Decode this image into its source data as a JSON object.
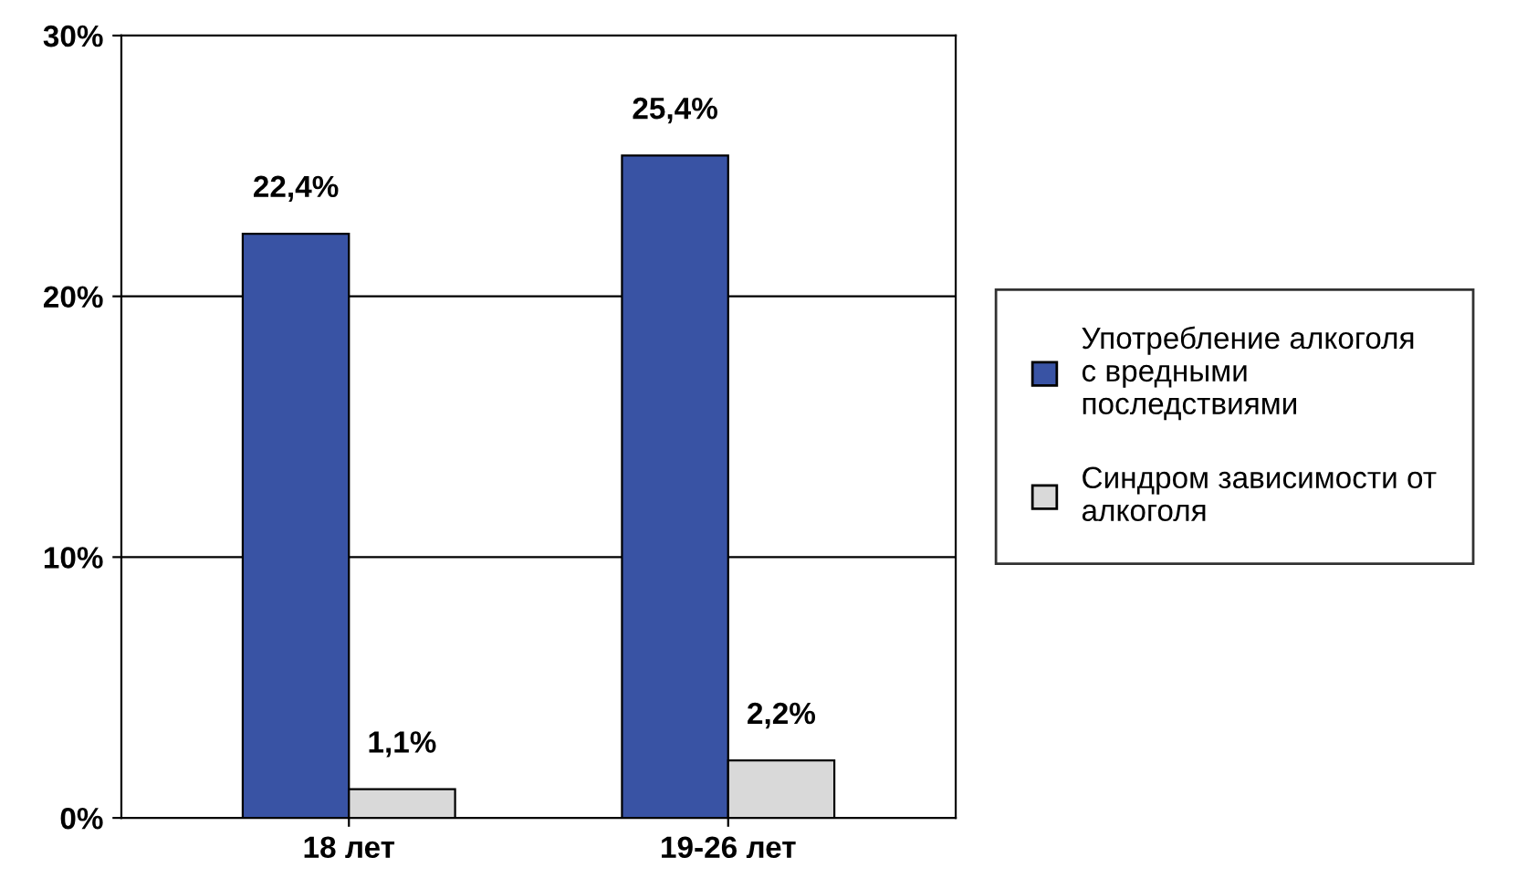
{
  "chart_data": {
    "type": "bar",
    "categories": [
      "18 лет",
      "19-26 лет"
    ],
    "series": [
      {
        "name": "Употребление алкоголя с вредными последствиями",
        "color": "#3953a4",
        "values": [
          22.4,
          25.4
        ],
        "value_labels": [
          "22,4%",
          "25,4%"
        ]
      },
      {
        "name": "Синдром зависимости от алкоголя",
        "color": "#d9d9d9",
        "values": [
          1.1,
          2.2
        ],
        "value_labels": [
          "1,1%",
          "2,2%"
        ]
      }
    ],
    "ylim": [
      0,
      30
    ],
    "yticks": [
      {
        "value": 0,
        "label": "0%"
      },
      {
        "value": 10,
        "label": "10%"
      },
      {
        "value": 20,
        "label": "20%"
      },
      {
        "value": 30,
        "label": "30%"
      }
    ],
    "grid": "y",
    "legend": "right"
  }
}
